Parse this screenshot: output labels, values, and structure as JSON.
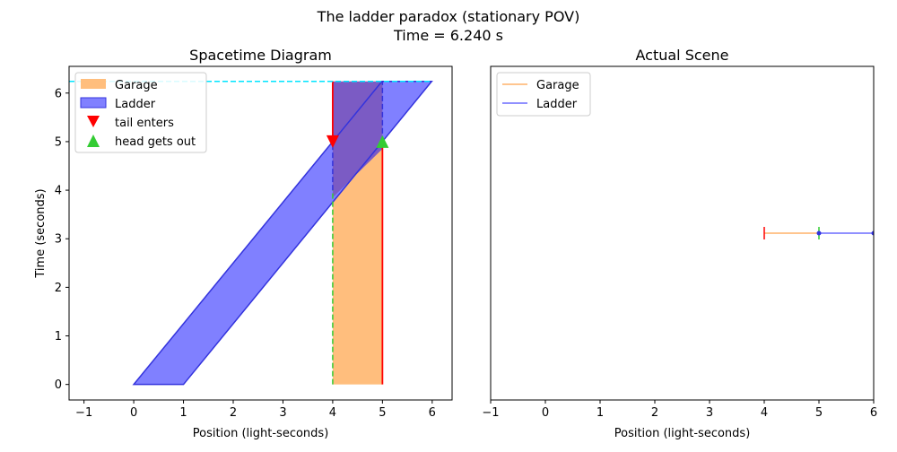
{
  "figure": {
    "suptitle_line1": "The ladder paradox (stationary POV)",
    "suptitle_line2": "Time = 6.240 s"
  },
  "colors": {
    "garage": "#ffbe7d",
    "garage_line": "#ffb26a",
    "ladder": "#8080ff",
    "ladder_edge": "#3333dd",
    "red": "#ff0000",
    "green": "#33cc33",
    "cyan": "#00e5ff"
  },
  "chart_data": [
    {
      "type": "area",
      "title": "Spacetime Diagram",
      "xlabel": "Position (light-seconds)",
      "ylabel": "Time (seconds)",
      "xlim": [
        -1.3,
        6.4
      ],
      "ylim": [
        -0.32,
        6.55
      ],
      "x_ticks": [
        -1,
        0,
        1,
        2,
        3,
        4,
        5,
        6
      ],
      "y_ticks": [
        0,
        1,
        2,
        3,
        4,
        5,
        6
      ],
      "grid": false,
      "legend_position": "top-left",
      "current_time": 6.24,
      "garage": {
        "name": "Garage",
        "x": [
          4,
          5
        ],
        "t": [
          0,
          6.24
        ]
      },
      "ladder": {
        "name": "Ladder",
        "polygon": [
          [
            0,
            0
          ],
          [
            1,
            0
          ],
          [
            5.99,
            6.24
          ],
          [
            4.99,
            6.24
          ]
        ]
      },
      "markers": [
        {
          "name": "tail enters",
          "x": 4,
          "t": 5,
          "shape": "triangle-down",
          "color": "red"
        },
        {
          "name": "head gets out",
          "x": 5,
          "t": 5,
          "shape": "triangle-up",
          "color": "green"
        }
      ],
      "legend": [
        "Garage",
        "Ladder",
        "tail enters",
        "head gets out"
      ]
    },
    {
      "type": "line",
      "title": "Actual Scene",
      "xlabel": "Position (light-seconds)",
      "xlim": [
        -1,
        6
      ],
      "ylim": [
        0,
        6.24
      ],
      "x_ticks": [
        -1,
        0,
        1,
        2,
        3,
        4,
        5,
        6
      ],
      "y_ticks": [],
      "legend_position": "top-left",
      "scene_y": 3.12,
      "series": [
        {
          "name": "Garage",
          "x": [
            4,
            5
          ]
        },
        {
          "name": "Ladder",
          "x": [
            5,
            6
          ]
        }
      ]
    }
  ]
}
